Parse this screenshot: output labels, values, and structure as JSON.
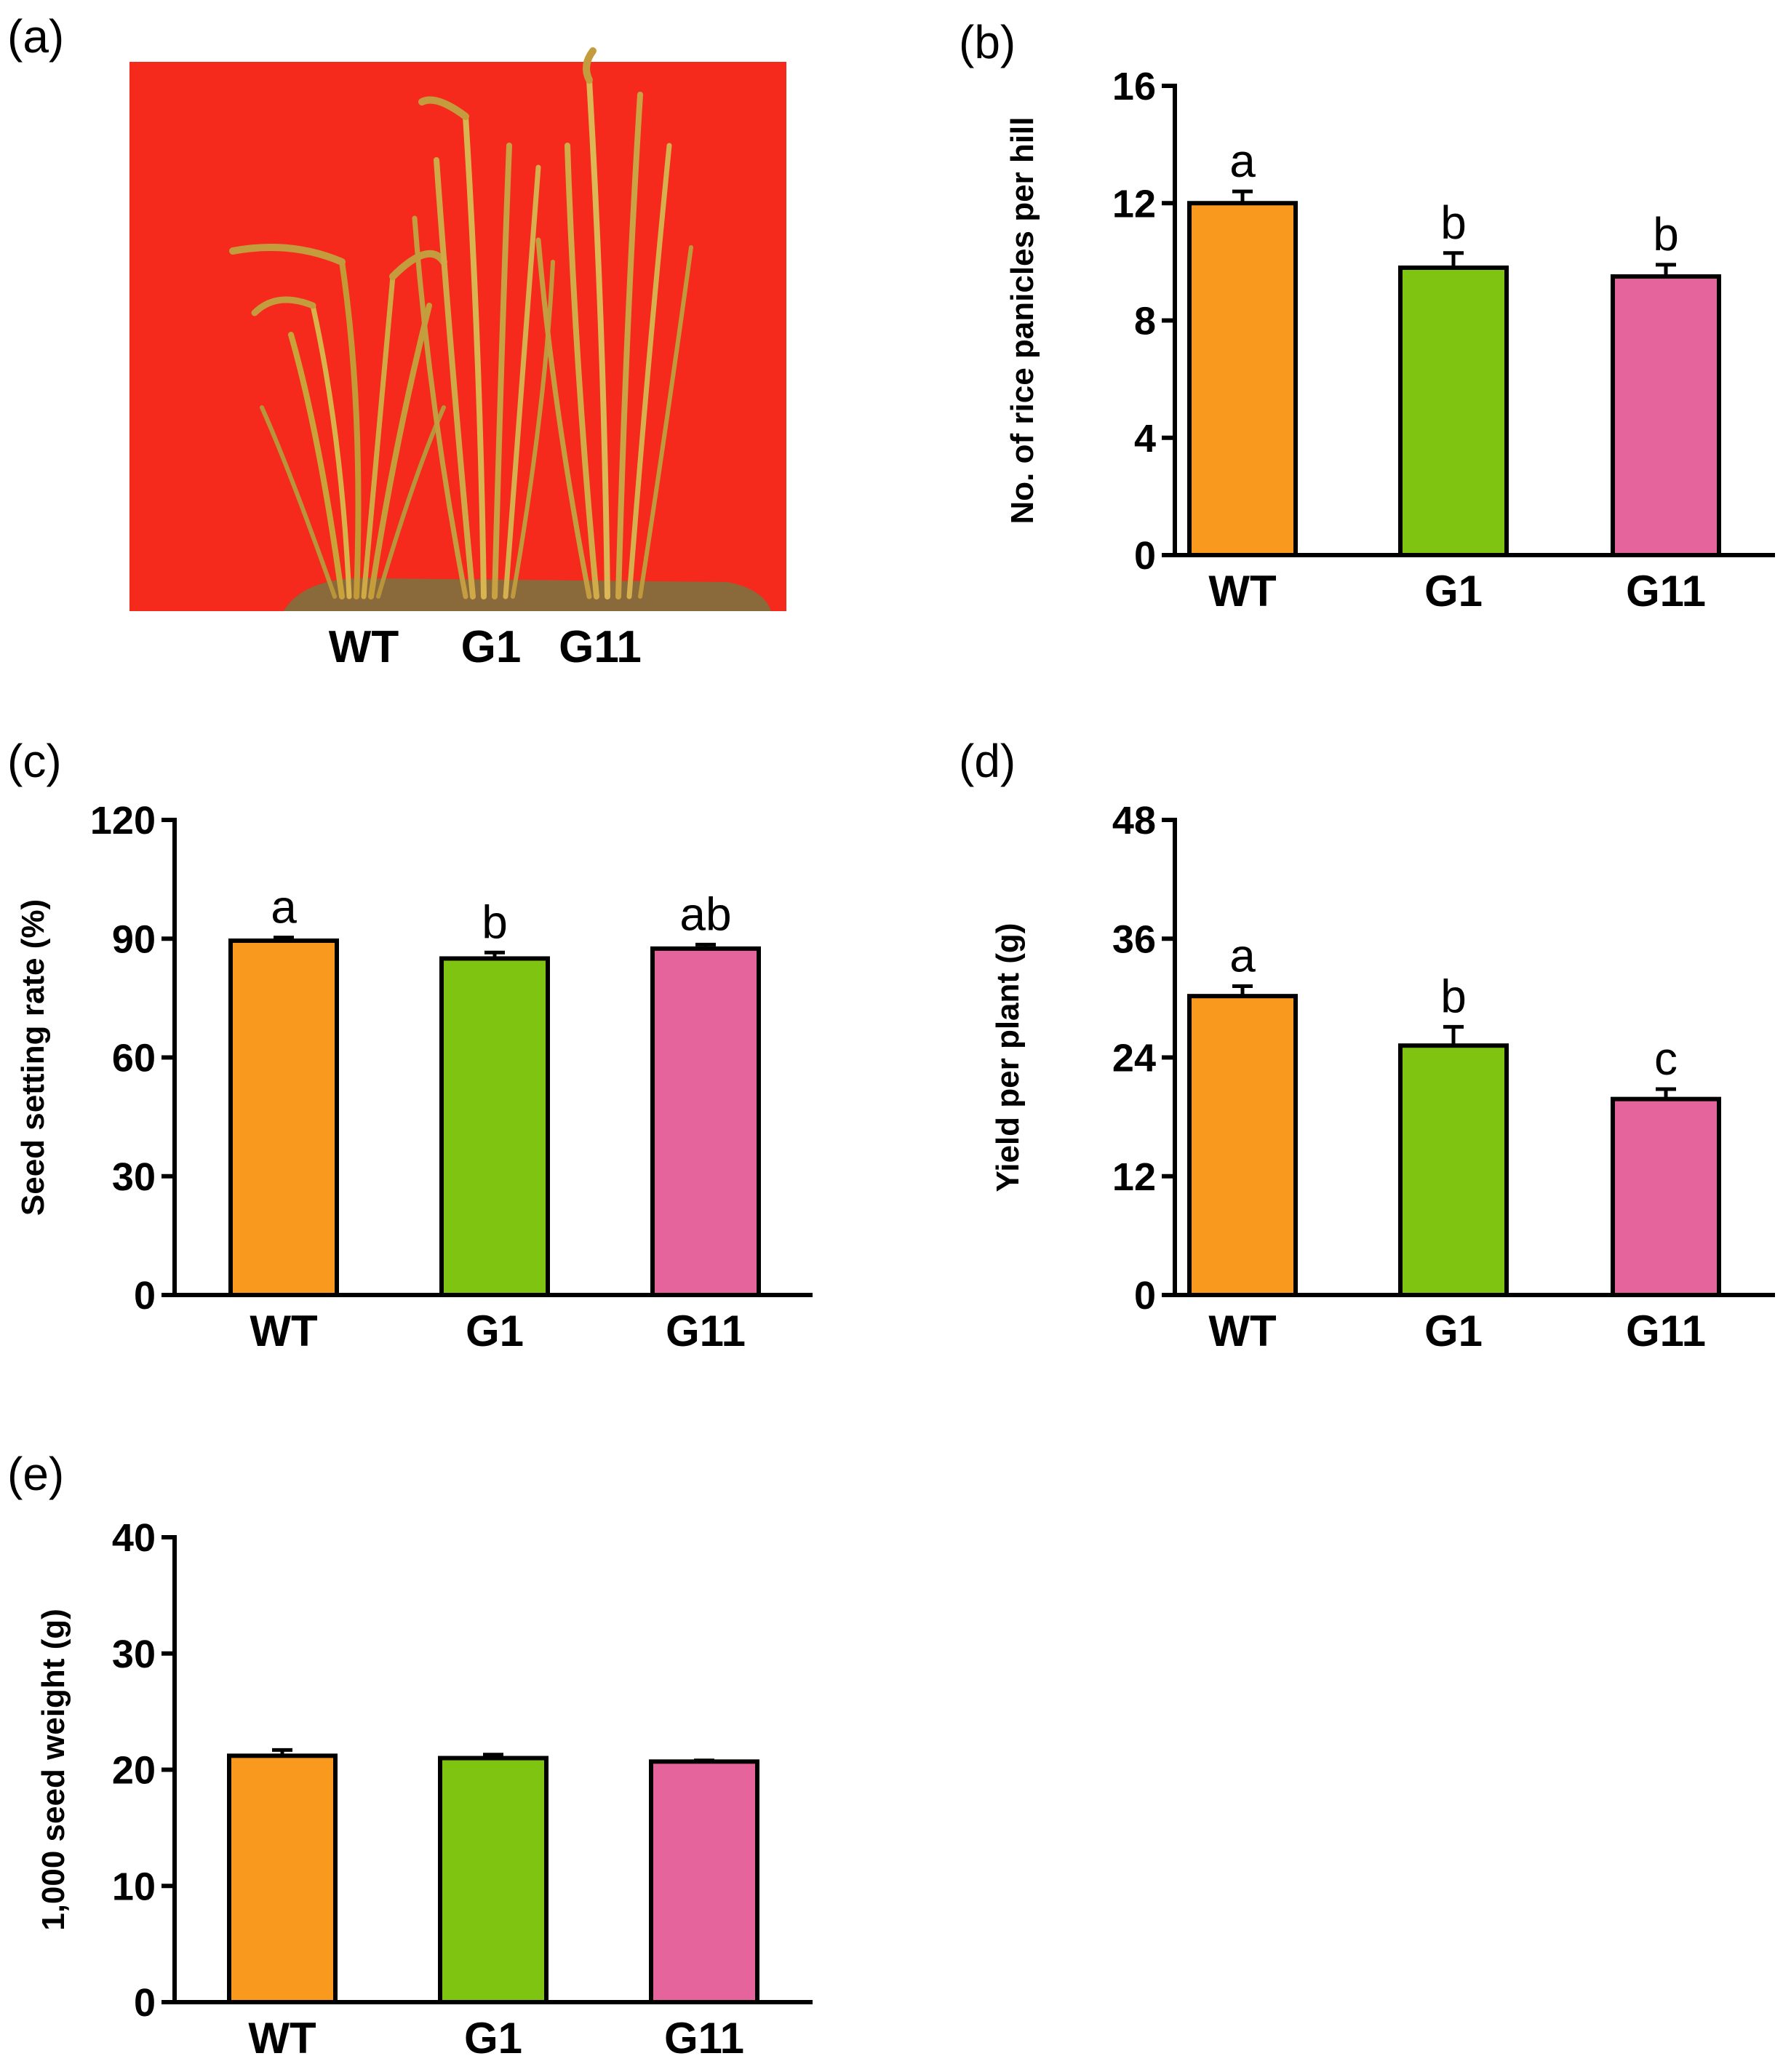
{
  "panels": {
    "a": {
      "letter": "(a)",
      "photo_background": "#f52a1c",
      "labels": [
        "WT",
        "G1",
        "G11"
      ]
    }
  },
  "colors": {
    "WT": "#f99a1e",
    "G1": "#7ec410",
    "G11": "#e5649c"
  },
  "chart_data": [
    {
      "id": "b",
      "letter": "(b)",
      "type": "bar",
      "categories": [
        "WT",
        "G1",
        "G11"
      ],
      "values": [
        12.0,
        9.8,
        9.5
      ],
      "errors": [
        0.4,
        0.5,
        0.4
      ],
      "sig": [
        "a",
        "b",
        "b"
      ],
      "ylabel": "No. of rice panicles per hill",
      "ylim": [
        0,
        16
      ],
      "yticks": [
        0,
        4,
        8,
        12,
        16
      ],
      "grid": false
    },
    {
      "id": "c",
      "letter": "(c)",
      "type": "bar",
      "categories": [
        "WT",
        "G1",
        "G11"
      ],
      "values": [
        89.5,
        85.0,
        87.5
      ],
      "errors": [
        0.8,
        1.5,
        1.0
      ],
      "sig": [
        "a",
        "b",
        "ab"
      ],
      "ylabel": "Seed setting rate  (%)",
      "ylim": [
        0,
        120
      ],
      "yticks": [
        0,
        30,
        60,
        90,
        120
      ],
      "grid": false
    },
    {
      "id": "d",
      "letter": "(d)",
      "type": "bar",
      "categories": [
        "WT",
        "G1",
        "G11"
      ],
      "values": [
        30.2,
        25.2,
        19.8
      ],
      "errors": [
        1.0,
        1.9,
        1.0
      ],
      "sig": [
        "a",
        "b",
        "c"
      ],
      "ylabel": "Yield per plant (g)",
      "ylim": [
        0,
        48
      ],
      "yticks": [
        0,
        12,
        24,
        36,
        48
      ],
      "grid": false
    },
    {
      "id": "e",
      "letter": "(e)",
      "type": "bar",
      "categories": [
        "WT",
        "G1",
        "G11"
      ],
      "values": [
        21.2,
        21.0,
        20.7
      ],
      "errors": [
        0.5,
        0.3,
        0.1
      ],
      "sig": [
        "",
        "",
        ""
      ],
      "ylabel": "1,000 seed weight (g)",
      "ylim": [
        0,
        40
      ],
      "yticks": [
        0,
        10,
        20,
        30,
        40
      ],
      "grid": false
    }
  ]
}
